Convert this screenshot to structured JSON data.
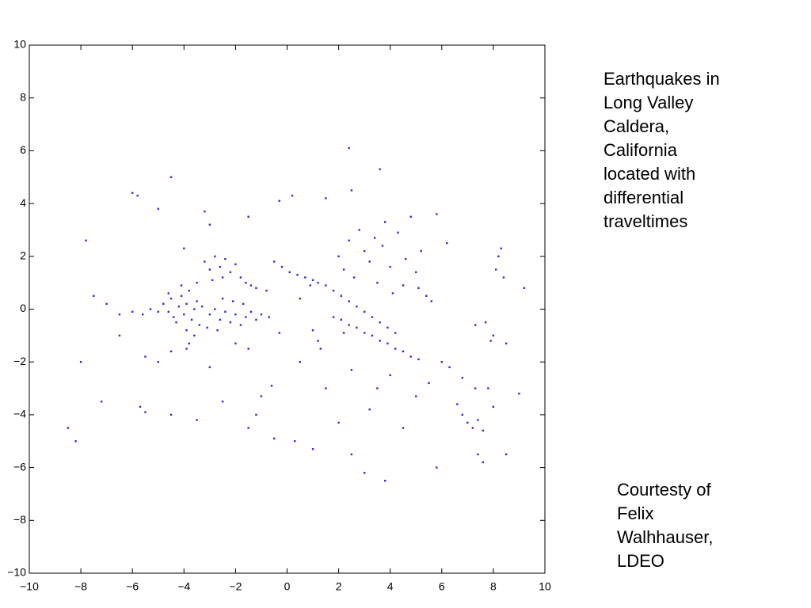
{
  "chart_data": {
    "type": "scatter",
    "color": "#2b2be6",
    "xlim": [
      -10,
      10
    ],
    "ylim": [
      -10,
      10
    ],
    "xticks": [
      {
        "value": -10,
        "label": "−10"
      },
      {
        "value": -8,
        "label": "−8"
      },
      {
        "value": -6,
        "label": "−6"
      },
      {
        "value": -4,
        "label": "−4"
      },
      {
        "value": -2,
        "label": "−2"
      },
      0,
      2,
      4,
      6,
      8,
      10
    ],
    "yticks": [
      {
        "value": -10,
        "label": "−10"
      },
      {
        "value": -8,
        "label": "−8"
      },
      {
        "value": -6,
        "label": "−6"
      },
      {
        "value": -4,
        "label": "−4"
      },
      {
        "value": -2,
        "label": "−2"
      },
      0,
      2,
      4,
      6,
      8,
      10
    ],
    "grid": false,
    "annotations": [
      [
        "Earthquakes in",
        "Long Valley",
        "Caldera,",
        "California",
        "located with",
        "differential",
        "traveltimes"
      ],
      [
        "Courtesty of",
        "Felix",
        "Walhhauser,",
        "LDEO"
      ]
    ],
    "x": [
      -4.8,
      -4.6,
      -4.5,
      -4.4,
      -4.2,
      -4.1,
      -4.0,
      -3.9,
      -3.8,
      -3.7,
      -3.6,
      -3.5,
      -3.4,
      -3.3,
      -4.3,
      -3.9,
      -3.6,
      -4.1,
      -3.5,
      -4.6,
      -5.0,
      -5.3,
      -5.6,
      -6.0,
      -6.5,
      -7.0,
      -3.8,
      -3.9,
      -3.0,
      -2.8,
      -2.6,
      -2.4,
      -2.2,
      -2.0,
      -1.8,
      -1.6,
      -1.4,
      -1.2,
      -1.0,
      -0.7,
      -2.5,
      -2.1,
      -1.7,
      -3.1,
      -2.7,
      -3.2,
      -3.0,
      -2.8,
      -2.6,
      -2.4,
      -2.2,
      -2.0,
      -1.8,
      -1.6,
      -1.4,
      -1.2,
      -2.9,
      -2.5,
      -0.5,
      -0.2,
      0.1,
      0.4,
      0.7,
      1.0,
      1.2,
      1.5,
      1.8,
      2.1,
      2.4,
      2.7,
      3.0,
      3.3,
      3.6,
      3.9,
      4.2,
      0.9,
      1.8,
      2.1,
      2.4,
      2.7,
      3.0,
      3.3,
      3.6,
      3.9,
      4.2,
      4.5,
      4.8,
      5.1,
      2.2,
      1.2,
      1.0,
      1.3,
      2.0,
      2.2,
      2.4,
      2.6,
      2.8,
      3.0,
      3.2,
      3.4,
      3.5,
      3.7,
      3.8,
      4.0,
      4.1,
      4.3,
      4.5,
      4.6,
      4.8,
      5.0,
      5.1,
      5.2,
      5.4,
      5.6,
      5.8,
      6.2,
      6.8,
      7.0,
      7.2,
      7.4,
      7.6,
      7.4,
      7.6,
      6.6,
      6.0,
      6.3,
      6.8,
      7.3,
      7.8,
      8.2,
      8.1,
      8.3,
      7.7,
      7.9,
      7.3,
      8.0,
      8.5,
      8.4,
      -6.0,
      -5.8,
      -4.5,
      -5.7,
      -5.5,
      -4.5,
      -3.5,
      -2.5,
      -1.5,
      -1.2,
      -1.0,
      -0.6,
      -0.5,
      -8.5,
      -8.2,
      -7.2,
      -8.0,
      -7.5,
      -7.8,
      -6.5,
      -5.5,
      -5.0,
      -4.5,
      -3.0,
      -1.5,
      0.5,
      1.5,
      2.5,
      3.5,
      4.0,
      4.5,
      5.0,
      5.5,
      2.5,
      3.0,
      3.8,
      5.8,
      8.0,
      8.5,
      9.0,
      1.5,
      0.2,
      -0.3,
      2.5,
      3.6,
      2.4,
      -1.5,
      -3.0,
      0.3,
      1.0,
      2.0,
      3.2,
      -2.0,
      -0.3,
      0.5,
      -0.8,
      -4.0,
      -5.0,
      -3.2,
      9.2
    ],
    "y": [
      0.2,
      -0.1,
      0.4,
      -0.3,
      0.1,
      0.5,
      -0.2,
      0.2,
      0.7,
      -0.4,
      0.0,
      0.3,
      -0.6,
      0.1,
      -0.5,
      -0.8,
      -1.0,
      0.9,
      1.0,
      0.6,
      -0.1,
      0.0,
      -0.2,
      -0.1,
      -0.2,
      0.2,
      -1.3,
      -1.5,
      -0.2,
      0.0,
      -0.4,
      -0.1,
      -0.5,
      -0.2,
      -0.6,
      -0.3,
      -0.1,
      -0.4,
      -0.2,
      -0.3,
      0.4,
      0.3,
      0.2,
      -0.7,
      -0.8,
      1.8,
      1.5,
      2.0,
      1.6,
      1.9,
      1.4,
      1.7,
      1.2,
      1.0,
      0.9,
      0.8,
      1.1,
      1.2,
      1.8,
      1.6,
      1.4,
      1.3,
      1.2,
      1.1,
      1.0,
      0.9,
      0.7,
      0.5,
      0.3,
      0.1,
      -0.1,
      -0.3,
      -0.5,
      -0.7,
      -0.9,
      0.9,
      -0.3,
      -0.4,
      -0.6,
      -0.7,
      -0.9,
      -1.0,
      -1.2,
      -1.3,
      -1.5,
      -1.6,
      -1.8,
      -1.9,
      -0.9,
      -1.2,
      -0.8,
      -1.5,
      2.0,
      1.5,
      2.6,
      1.2,
      3.0,
      2.2,
      1.8,
      2.7,
      1.0,
      2.4,
      3.3,
      1.6,
      0.6,
      2.9,
      0.9,
      1.9,
      3.5,
      1.4,
      0.8,
      2.2,
      0.5,
      0.3,
      3.6,
      2.5,
      -4.0,
      -4.3,
      -4.5,
      -4.2,
      -4.6,
      -5.5,
      -5.8,
      -3.6,
      -2.0,
      -2.2,
      -2.6,
      -3.0,
      -3.0,
      2.0,
      1.5,
      2.3,
      -0.5,
      -1.2,
      -0.6,
      -1.0,
      -1.3,
      1.2,
      4.4,
      4.3,
      5.0,
      -3.7,
      -3.9,
      -4.0,
      -4.2,
      -3.5,
      -4.5,
      -4.0,
      -3.3,
      -2.9,
      -4.9,
      -4.5,
      -5.0,
      -3.5,
      -2.0,
      0.5,
      2.6,
      -1.0,
      -1.8,
      -2.0,
      -1.6,
      -2.2,
      -1.5,
      -2.0,
      -3.0,
      -2.3,
      -3.0,
      -2.5,
      -4.5,
      -3.3,
      -2.8,
      -5.5,
      -6.2,
      -6.5,
      -6.0,
      -3.7,
      -5.5,
      -3.2,
      4.2,
      4.3,
      4.1,
      4.5,
      5.3,
      6.1,
      3.5,
      3.2,
      -5.0,
      -5.3,
      -4.3,
      -3.8,
      -1.3,
      -0.9,
      0.4,
      0.7,
      2.3,
      3.8,
      3.7,
      0.8
    ]
  }
}
